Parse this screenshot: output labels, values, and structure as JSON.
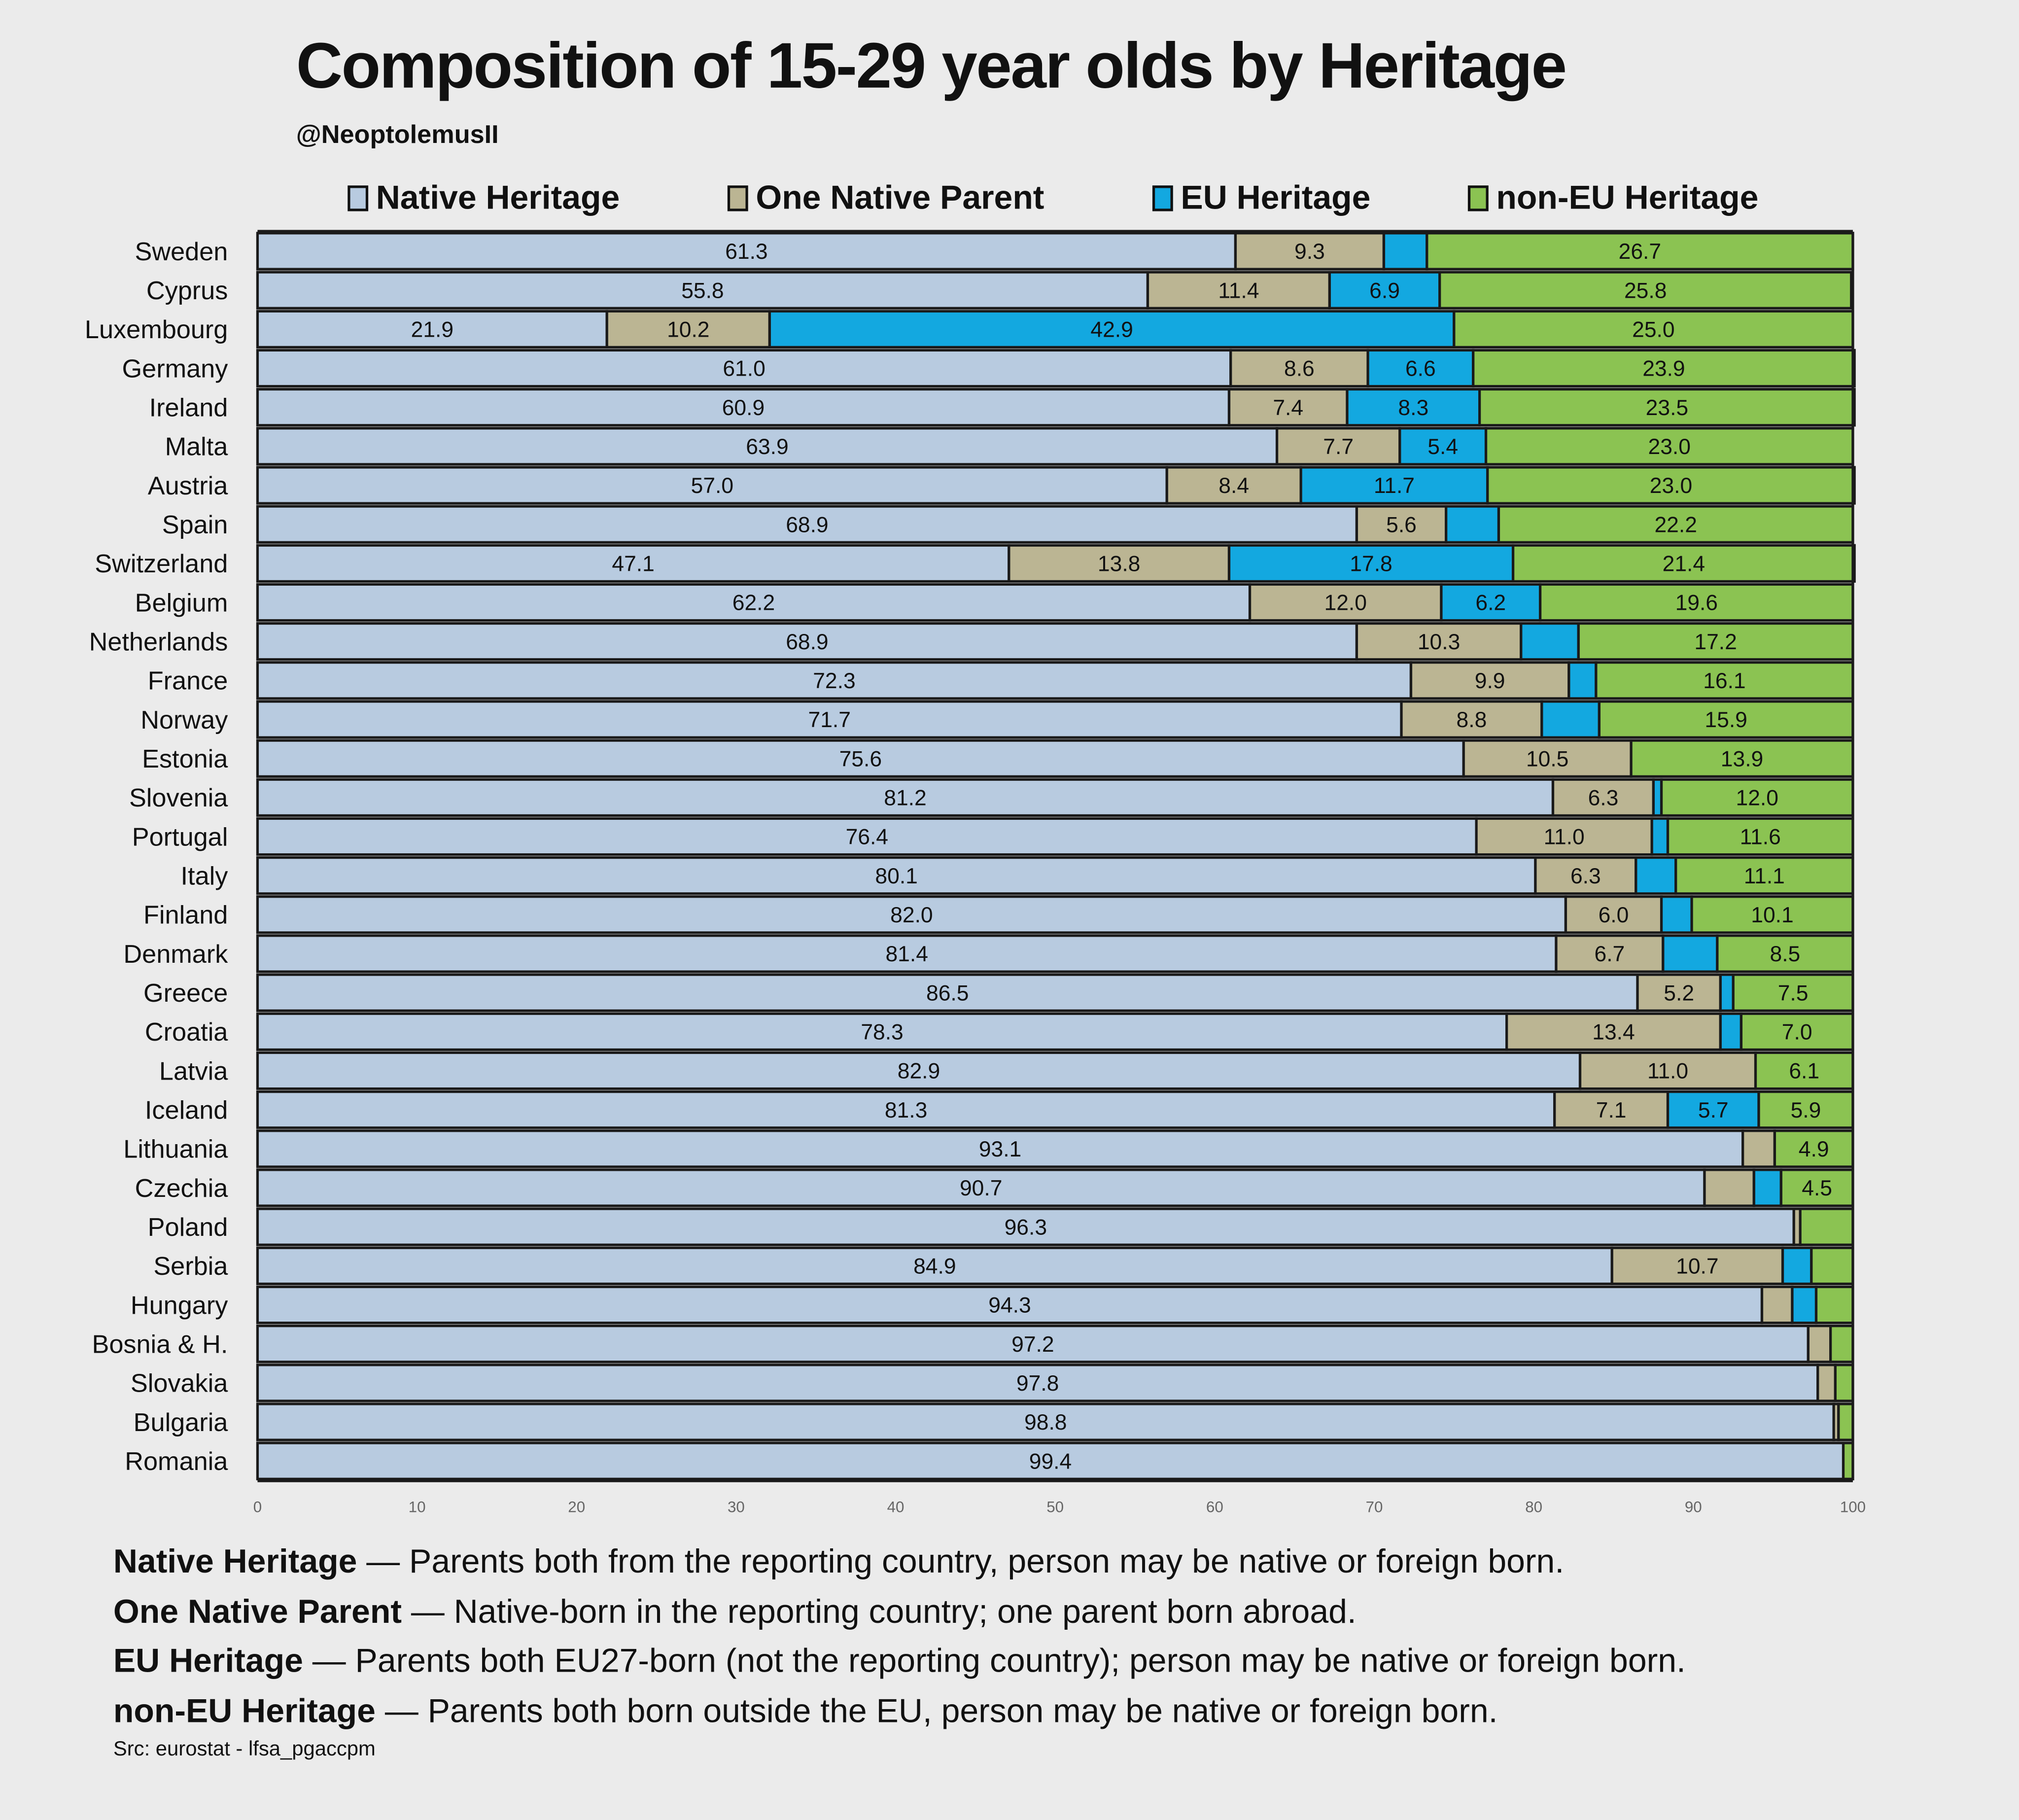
{
  "header": {
    "title": "Composition of 15-29 year olds by Heritage",
    "author": "@NeoptolemusII"
  },
  "legend": [
    {
      "label": "Native Heritage",
      "color": "#b8cbe0"
    },
    {
      "label": "One Native Parent",
      "color": "#bbb593"
    },
    {
      "label": "EU Heritage",
      "color": "#13a8e0"
    },
    {
      "label": "non-EU Heritage",
      "color": "#8bc352"
    }
  ],
  "chart_data": {
    "type": "bar",
    "orientation": "horizontal",
    "stacked": true,
    "title": "Composition of 15-29 year olds by Heritage",
    "xlabel": "",
    "ylabel": "",
    "xlim": [
      0,
      100
    ],
    "x_ticks": [
      "0",
      "10",
      "20",
      "30",
      "40",
      "50",
      "60",
      "70",
      "80",
      "90",
      "100"
    ],
    "legend_position": "top",
    "categories": [
      "Sweden",
      "Cyprus",
      "Luxembourg",
      "Germany",
      "Ireland",
      "Malta",
      "Austria",
      "Spain",
      "Switzerland",
      "Belgium",
      "Netherlands",
      "France",
      "Norway",
      "Estonia",
      "Slovenia",
      "Portugal",
      "Italy",
      "Finland",
      "Denmark",
      "Greece",
      "Croatia",
      "Latvia",
      "Iceland",
      "Lithuania",
      "Czechia",
      "Poland",
      "Serbia",
      "Hungary",
      "Bosnia & H.",
      "Slovakia",
      "Bulgaria",
      "Romania"
    ],
    "series": [
      {
        "name": "Native Heritage",
        "color": "#b8cbe0",
        "values": [
          61.3,
          55.8,
          21.9,
          61.0,
          60.9,
          63.9,
          57.0,
          68.9,
          47.1,
          62.2,
          68.9,
          72.3,
          71.7,
          75.6,
          81.2,
          76.4,
          80.1,
          82.0,
          81.4,
          86.5,
          78.3,
          82.9,
          81.3,
          93.1,
          90.7,
          96.3,
          84.9,
          94.3,
          97.2,
          97.8,
          98.8,
          99.4
        ],
        "labels": [
          "61.3",
          "55.8",
          "21.9",
          "61.0",
          "60.9",
          "63.9",
          "57.0",
          "68.9",
          "47.1",
          "62.2",
          "68.9",
          "72.3",
          "71.7",
          "75.6",
          "81.2",
          "76.4",
          "80.1",
          "82.0",
          "81.4",
          "86.5",
          "78.3",
          "82.9",
          "81.3",
          "93.1",
          "90.7",
          "96.3",
          "84.9",
          "94.3",
          "97.2",
          "97.8",
          "98.8",
          "99.4"
        ]
      },
      {
        "name": "One Native Parent",
        "color": "#bbb593",
        "values": [
          9.3,
          11.4,
          10.2,
          8.6,
          7.4,
          7.7,
          8.4,
          5.6,
          13.8,
          12.0,
          10.3,
          9.9,
          8.8,
          10.5,
          6.3,
          11.0,
          6.3,
          6.0,
          6.7,
          5.2,
          13.4,
          11.0,
          7.1,
          2.0,
          3.1,
          0.4,
          10.7,
          1.9,
          1.4,
          1.1,
          0.3,
          0.0
        ],
        "labels": [
          "9.3",
          "11.4",
          "10.2",
          "8.6",
          "7.4",
          "7.7",
          "8.4",
          "5.6",
          "13.8",
          "12.0",
          "10.3",
          "9.9",
          "8.8",
          "10.5",
          "6.3",
          "11.0",
          "6.3",
          "6.0",
          "6.7",
          "5.2",
          "13.4",
          "11.0",
          "7.1",
          "",
          "",
          "",
          "10.7",
          "",
          "",
          "",
          "",
          ""
        ]
      },
      {
        "name": "EU Heritage",
        "color": "#13a8e0",
        "values": [
          2.7,
          6.9,
          42.9,
          6.6,
          8.3,
          5.4,
          11.7,
          3.3,
          17.8,
          6.2,
          3.6,
          1.7,
          3.6,
          0.0,
          0.5,
          1.0,
          2.5,
          1.9,
          3.4,
          0.8,
          1.3,
          0.0,
          5.7,
          0.0,
          1.7,
          0.0,
          1.8,
          1.5,
          0.0,
          0.0,
          0.0,
          0.0
        ],
        "labels": [
          "",
          "6.9",
          "42.9",
          "6.6",
          "8.3",
          "5.4",
          "11.7",
          "",
          "17.8",
          "6.2",
          "",
          "",
          "",
          "",
          "",
          "",
          "",
          "",
          "",
          "",
          "",
          "",
          "5.7",
          "",
          "",
          "",
          "",
          "",
          "",
          "",
          "",
          ""
        ]
      },
      {
        "name": "non-EU Heritage",
        "color": "#8bc352",
        "values": [
          26.7,
          25.8,
          25.0,
          23.9,
          23.5,
          23.0,
          23.0,
          22.2,
          21.4,
          19.6,
          17.2,
          16.1,
          15.9,
          13.9,
          12.0,
          11.6,
          11.1,
          10.1,
          8.5,
          7.5,
          7.0,
          6.1,
          5.9,
          4.9,
          4.5,
          3.3,
          2.6,
          2.3,
          1.4,
          1.1,
          0.9,
          0.6
        ],
        "labels": [
          "26.7",
          "25.8",
          "25.0",
          "23.9",
          "23.5",
          "23.0",
          "23.0",
          "22.2",
          "21.4",
          "19.6",
          "17.2",
          "16.1",
          "15.9",
          "13.9",
          "12.0",
          "11.6",
          "11.1",
          "10.1",
          "8.5",
          "7.5",
          "7.0",
          "6.1",
          "5.9",
          "4.9",
          "4.5",
          "",
          "",
          "",
          "",
          "",
          "",
          ""
        ]
      }
    ]
  },
  "definitions": [
    {
      "term": "Native Heritage",
      "text": " — Parents both from the reporting country, person may be native or foreign born."
    },
    {
      "term": "One Native Parent",
      "text": " — Native-born in the reporting country; one parent born abroad."
    },
    {
      "term": "EU Heritage",
      "text": " — Parents both EU27-born (not the reporting country); person may be native or foreign born."
    },
    {
      "term": "non-EU Heritage",
      "text": " — Parents both born outside the EU, person may be native or foreign born."
    }
  ],
  "source": "Src: eurostat - lfsa_pgaccpm"
}
